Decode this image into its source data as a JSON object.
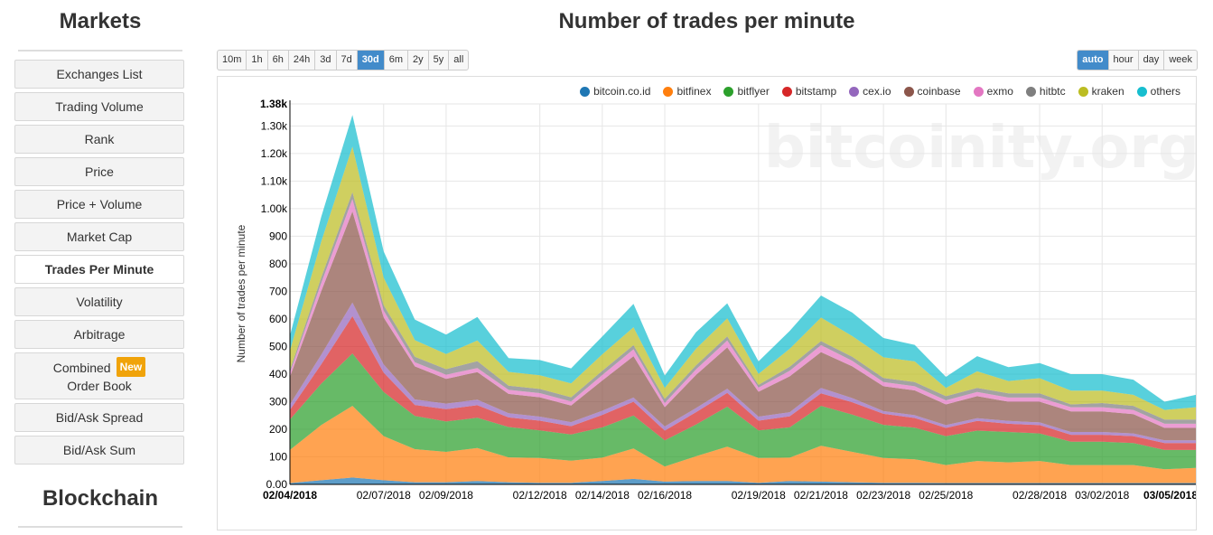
{
  "sidebar": {
    "markets_title": "Markets",
    "items": [
      {
        "label": "Exchanges List"
      },
      {
        "label": "Trading Volume"
      },
      {
        "label": "Rank"
      },
      {
        "label": "Price"
      },
      {
        "label": "Price + Volume"
      },
      {
        "label": "Market Cap"
      },
      {
        "label": "Trades Per Minute"
      },
      {
        "label": "Volatility"
      },
      {
        "label": "Arbitrage"
      },
      {
        "label": "Combined",
        "label2": "Order Book",
        "badge": "New"
      },
      {
        "label": "Bid/Ask Spread"
      },
      {
        "label": "Bid/Ask Sum"
      }
    ],
    "blockchain_title": "Blockchain"
  },
  "page": {
    "title": "Number of trades per minute"
  },
  "range_buttons": [
    "10m",
    "1h",
    "6h",
    "24h",
    "3d",
    "7d",
    "30d",
    "6m",
    "2y",
    "5y",
    "all"
  ],
  "range_active": "30d",
  "interval_buttons": [
    "auto",
    "hour",
    "day",
    "week"
  ],
  "interval_active": "auto",
  "watermark": "bitcoinity.org",
  "colors": {
    "bitcoin.co.id": "#1f77b4",
    "bitfinex": "#ff7f0e",
    "bitflyer": "#2ca02c",
    "bitstamp": "#d62728",
    "cex.io": "#9467bd",
    "coinbase": "#8c564b",
    "exmo": "#e377c2",
    "hitbtc": "#7f7f7f",
    "kraken": "#bcbd22",
    "others": "#17becf",
    "active": "#428bca",
    "badge": "#f0a30a"
  },
  "chart_data": {
    "type": "area",
    "stacked": true,
    "title": "Number of trades per minute",
    "ylabel": "Number of trades per minute",
    "xlabel": "",
    "ylim": [
      0,
      1380
    ],
    "yticks": [
      "0.00",
      "100",
      "200",
      "300",
      "400",
      "500",
      "600",
      "700",
      "800",
      "900",
      "1.00k",
      "1.10k",
      "1.20k",
      "1.30k",
      "1.38k"
    ],
    "ytick_values": [
      0,
      100,
      200,
      300,
      400,
      500,
      600,
      700,
      800,
      900,
      1000,
      1100,
      1200,
      1300,
      1380
    ],
    "x_index_range": [
      0,
      29
    ],
    "xtick_labels": [
      {
        "label": "02/04/2018",
        "index": 0,
        "bold": true
      },
      {
        "label": "02/07/2018",
        "index": 3,
        "bold": false
      },
      {
        "label": "02/09/2018",
        "index": 5,
        "bold": false
      },
      {
        "label": "02/12/2018",
        "index": 8,
        "bold": false
      },
      {
        "label": "02/14/2018",
        "index": 10,
        "bold": false
      },
      {
        "label": "02/16/2018",
        "index": 12,
        "bold": false
      },
      {
        "label": "02/19/2018",
        "index": 15,
        "bold": false
      },
      {
        "label": "02/21/2018",
        "index": 17,
        "bold": false
      },
      {
        "label": "02/23/2018",
        "index": 19,
        "bold": false
      },
      {
        "label": "02/25/2018",
        "index": 21,
        "bold": false
      },
      {
        "label": "02/28/2018",
        "index": 24,
        "bold": false
      },
      {
        "label": "03/02/2018",
        "index": 26,
        "bold": false
      },
      {
        "label": "03/05/2018",
        "index": 29,
        "bold": true
      }
    ],
    "x_points": [
      0,
      1,
      2,
      3,
      4,
      5,
      6,
      7,
      8,
      9,
      10,
      11,
      12,
      13,
      14,
      15,
      16,
      17,
      18,
      19,
      20,
      21,
      22,
      23,
      24,
      25,
      26,
      27,
      28,
      29
    ],
    "series": [
      {
        "name": "bitcoin.co.id",
        "values": [
          5,
          15,
          25,
          15,
          8,
          8,
          12,
          8,
          6,
          6,
          12,
          20,
          10,
          12,
          12,
          6,
          12,
          10,
          8,
          6,
          6,
          5,
          5,
          5,
          5,
          5,
          5,
          5,
          5,
          5
        ]
      },
      {
        "name": "bitfinex",
        "values": [
          120,
          200,
          260,
          160,
          120,
          110,
          120,
          90,
          90,
          80,
          85,
          110,
          55,
          90,
          125,
          90,
          85,
          130,
          110,
          90,
          85,
          65,
          80,
          75,
          80,
          65,
          65,
          65,
          50,
          55
        ]
      },
      {
        "name": "bitflyer",
        "values": [
          110,
          150,
          190,
          160,
          120,
          110,
          110,
          110,
          100,
          95,
          110,
          120,
          95,
          115,
          145,
          100,
          110,
          145,
          135,
          120,
          115,
          105,
          110,
          110,
          100,
          85,
          85,
          80,
          70,
          65
        ]
      },
      {
        "name": "bitstamp",
        "values": [
          35,
          70,
          135,
          70,
          40,
          45,
          45,
          35,
          35,
          30,
          45,
          50,
          35,
          45,
          50,
          35,
          40,
          45,
          45,
          40,
          35,
          30,
          35,
          30,
          30,
          25,
          25,
          25,
          25,
          25
        ]
      },
      {
        "name": "cex.io",
        "values": [
          20,
          35,
          50,
          30,
          20,
          20,
          20,
          15,
          15,
          15,
          15,
          15,
          15,
          15,
          15,
          15,
          15,
          20,
          15,
          10,
          10,
          10,
          10,
          10,
          10,
          10,
          10,
          10,
          10,
          10
        ]
      },
      {
        "name": "coinbase",
        "values": [
          100,
          230,
          330,
          170,
          120,
          90,
          100,
          70,
          70,
          60,
          110,
          150,
          70,
          120,
          150,
          90,
          130,
          130,
          115,
          90,
          90,
          75,
          80,
          70,
          75,
          75,
          75,
          70,
          45,
          45
        ]
      },
      {
        "name": "exmo",
        "values": [
          15,
          30,
          45,
          25,
          15,
          15,
          15,
          15,
          15,
          15,
          20,
          25,
          15,
          20,
          25,
          15,
          20,
          25,
          20,
          15,
          15,
          15,
          15,
          15,
          15,
          15,
          15,
          15,
          15,
          15
        ]
      },
      {
        "name": "hitbtc",
        "values": [
          10,
          20,
          25,
          20,
          20,
          20,
          25,
          15,
          15,
          15,
          15,
          15,
          15,
          15,
          15,
          10,
          15,
          15,
          15,
          15,
          15,
          15,
          15,
          15,
          15,
          10,
          15,
          15,
          15,
          15
        ]
      },
      {
        "name": "kraken",
        "values": [
          70,
          130,
          165,
          100,
          60,
          55,
          75,
          50,
          50,
          50,
          60,
          65,
          40,
          60,
          65,
          40,
          65,
          85,
          75,
          75,
          75,
          30,
          60,
          45,
          55,
          50,
          45,
          40,
          35,
          45
        ]
      },
      {
        "name": "others",
        "values": [
          55,
          90,
          115,
          95,
          75,
          70,
          85,
          50,
          55,
          55,
          65,
          85,
          45,
          60,
          55,
          45,
          65,
          80,
          85,
          70,
          60,
          40,
          55,
          50,
          55,
          60,
          60,
          55,
          30,
          45
        ]
      }
    ]
  }
}
